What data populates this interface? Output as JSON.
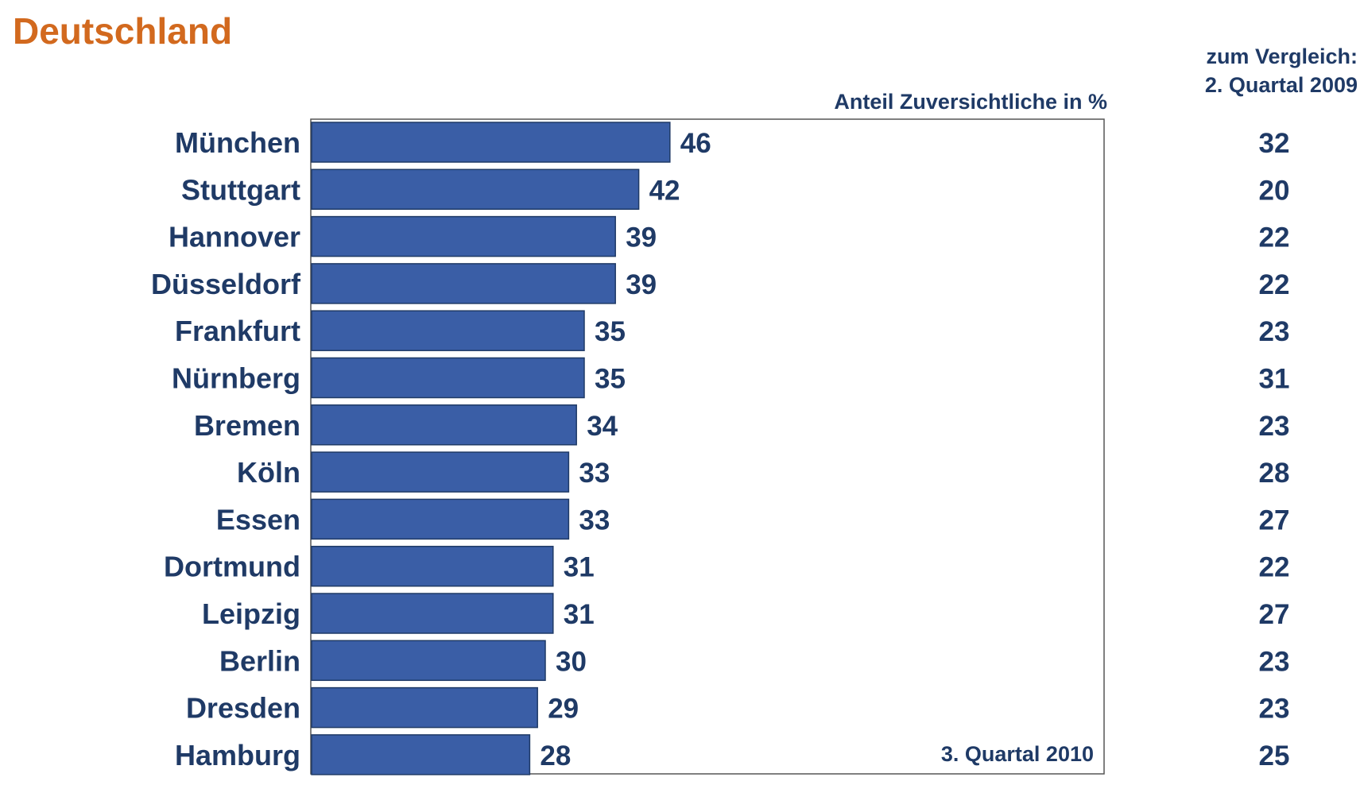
{
  "page": {
    "title": "Deutschland",
    "comparison_header_line1": "zum Vergleich:",
    "comparison_header_line2": "2. Quartal 2009",
    "axis_header": "Anteil Zuversichtliche in %",
    "period_label": "3. Quartal 2010"
  },
  "colors": {
    "title": "#d2691e",
    "text": "#1f3a66",
    "bar_fill": "#3a5ea6",
    "bar_stroke": "#1f3a66",
    "frame": "#555555"
  },
  "chart_data": {
    "type": "bar",
    "orientation": "horizontal",
    "title": "Deutschland",
    "xlabel": "Anteil Zuversichtliche in %",
    "ylabel": "",
    "xlim": [
      0,
      100
    ],
    "grid": false,
    "legend": "none",
    "categories": [
      "München",
      "Stuttgart",
      "Hannover",
      "Düsseldorf",
      "Frankfurt",
      "Nürnberg",
      "Bremen",
      "Köln",
      "Essen",
      "Dortmund",
      "Leipzig",
      "Berlin",
      "Dresden",
      "Hamburg"
    ],
    "series": [
      {
        "name": "3. Quartal 2010",
        "values": [
          46,
          42,
          39,
          39,
          35,
          35,
          34,
          33,
          33,
          31,
          31,
          30,
          29,
          28
        ]
      }
    ],
    "comparison": {
      "name": "2. Quartal 2009",
      "values": [
        32,
        20,
        22,
        22,
        23,
        31,
        23,
        28,
        27,
        22,
        27,
        23,
        23,
        25
      ]
    }
  }
}
